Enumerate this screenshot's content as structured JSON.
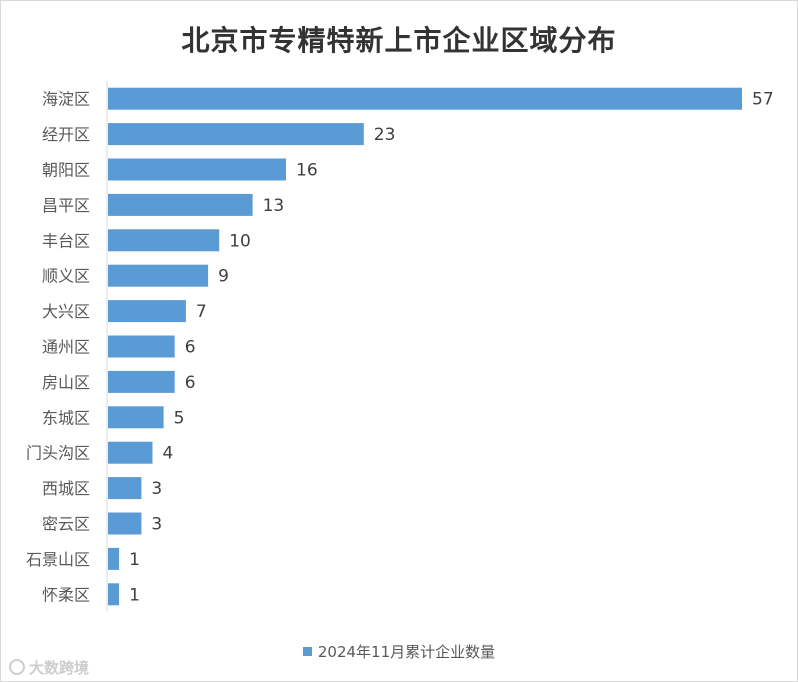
{
  "chart_data": {
    "type": "bar",
    "orientation": "horizontal",
    "title": "北京市专精特新上市企业区域分布",
    "categories": [
      "海淀区",
      "经开区",
      "朝阳区",
      "昌平区",
      "丰台区",
      "顺义区",
      "大兴区",
      "通州区",
      "房山区",
      "东城区",
      "门头沟区",
      "西城区",
      "密云区",
      "石景山区",
      "怀柔区"
    ],
    "series": [
      {
        "name": "2024年11月累计企业数量",
        "values": [
          57,
          23,
          16,
          13,
          10,
          9,
          7,
          6,
          6,
          5,
          4,
          3,
          3,
          1,
          1
        ],
        "color": "#5b9bd5"
      }
    ],
    "data_labels": true,
    "xlim": [
      0,
      57
    ],
    "grid": false,
    "legend_position": "bottom"
  },
  "watermark": {
    "text": "大数跨境",
    "icon": "logo-icon"
  }
}
